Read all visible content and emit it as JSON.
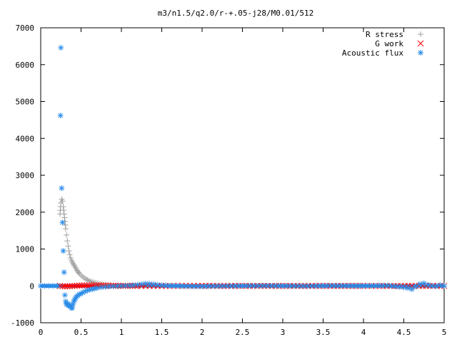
{
  "chart_data": {
    "type": "scatter",
    "title": "m3/n1.5/q2.0/r-+.05-j28/M0.01/512",
    "xlabel": "",
    "ylabel": "",
    "xlim": [
      0,
      5
    ],
    "ylim": [
      -1000,
      7000
    ],
    "x_ticks": [
      "0",
      "0.5",
      "1",
      "1.5",
      "2",
      "2.5",
      "3",
      "3.5",
      "4",
      "4.5",
      "5"
    ],
    "y_ticks": [
      "-1000",
      "0",
      "1000",
      "2000",
      "3000",
      "4000",
      "5000",
      "6000",
      "7000"
    ],
    "legend_position": "top-right",
    "grid": false,
    "series": [
      {
        "name": "R stress",
        "marker": "+",
        "color": "#a0a0a0",
        "x": [
          0.24,
          0.25,
          0.26,
          0.27,
          0.28,
          0.29,
          0.3,
          0.31,
          0.32,
          0.33,
          0.34,
          0.35,
          0.36,
          0.37,
          0.38,
          0.39,
          0.4,
          0.41,
          0.42,
          0.43,
          0.44,
          0.45,
          0.46,
          0.47,
          0.48,
          0.5,
          0.52,
          0.54,
          0.56,
          0.58,
          0.6,
          0.62,
          0.64,
          0.66,
          0.68,
          0.7,
          0.72,
          0.74,
          0.76,
          0.78,
          0.8,
          0.83,
          0.86,
          0.9,
          0.95,
          1.0,
          1.1
        ],
        "y": [
          1950,
          2250,
          2350,
          2300,
          2150,
          1950,
          1750,
          1550,
          1380,
          1220,
          1080,
          950,
          850,
          760,
          700,
          650,
          610,
          570,
          540,
          500,
          460,
          420,
          390,
          360,
          330,
          290,
          250,
          215,
          185,
          160,
          140,
          120,
          105,
          92,
          80,
          70,
          60,
          52,
          45,
          39,
          33,
          25,
          18,
          12,
          7,
          3,
          0
        ]
      },
      {
        "name": "G work",
        "marker": "x",
        "color": "#ff0000",
        "x": [
          0.24,
          0.27,
          0.3,
          0.33,
          0.36,
          0.39,
          0.42,
          0.45,
          0.48,
          0.51,
          0.54,
          0.57,
          0.6,
          0.63,
          0.66,
          0.69,
          0.72,
          0.75,
          0.78,
          0.81,
          0.84,
          0.87,
          0.9,
          0.93,
          0.96,
          0.99,
          1.02,
          1.05,
          1.08,
          1.11,
          1.14,
          1.17,
          1.2,
          1.25,
          1.3,
          1.4,
          1.5,
          1.75,
          2.0,
          2.5,
          3.0,
          3.5,
          4.0,
          4.2,
          4.6,
          5.0
        ],
        "y": [
          0,
          -10,
          -15,
          -12,
          -8,
          -5,
          0,
          5,
          10,
          12,
          14,
          16,
          15,
          14,
          13,
          12,
          11,
          10,
          9,
          8,
          7,
          6,
          5,
          5,
          4,
          4,
          3,
          3,
          2,
          2,
          1,
          1,
          0,
          0,
          0,
          0,
          0,
          0,
          0,
          0,
          0,
          0,
          0,
          0,
          0,
          0
        ]
      },
      {
        "name": "Acoustic flux",
        "marker": "*",
        "color": "#2a8ce8",
        "x": [
          0.0,
          0.1,
          0.2,
          0.245,
          0.25,
          0.26,
          0.27,
          0.28,
          0.29,
          0.3,
          0.31,
          0.32,
          0.33,
          0.34,
          0.35,
          0.36,
          0.37,
          0.38,
          0.39,
          0.4,
          0.41,
          0.42,
          0.43,
          0.44,
          0.46,
          0.48,
          0.5,
          0.52,
          0.55,
          0.58,
          0.61,
          0.64,
          0.67,
          0.7,
          0.75,
          0.8,
          0.85,
          0.9,
          0.95,
          1.0,
          1.05,
          1.1,
          1.15,
          1.2,
          1.25,
          1.3,
          1.35,
          1.4,
          1.45,
          1.5,
          1.6,
          1.7,
          1.8,
          2.0,
          2.2,
          2.5,
          2.8,
          3.0,
          3.3,
          3.6,
          4.0,
          4.3,
          4.5,
          4.55,
          4.6,
          4.65,
          4.7,
          4.75,
          4.8,
          4.85,
          4.9,
          4.95,
          5.0
        ],
        "y": [
          0,
          0,
          0,
          4620,
          6460,
          2650,
          1720,
          950,
          370,
          -250,
          -420,
          -500,
          -480,
          -520,
          -540,
          -520,
          -560,
          -600,
          -590,
          -500,
          -420,
          -380,
          -340,
          -300,
          -260,
          -230,
          -210,
          -180,
          -150,
          -120,
          -100,
          -85,
          -70,
          -55,
          -40,
          -28,
          -18,
          -10,
          -5,
          0,
          5,
          10,
          20,
          30,
          45,
          60,
          55,
          45,
          30,
          20,
          5,
          0,
          -10,
          -15,
          -5,
          0,
          5,
          0,
          -5,
          5,
          0,
          10,
          -40,
          -60,
          -90,
          -20,
          50,
          70,
          30,
          0,
          -10,
          20,
          0
        ]
      }
    ]
  }
}
